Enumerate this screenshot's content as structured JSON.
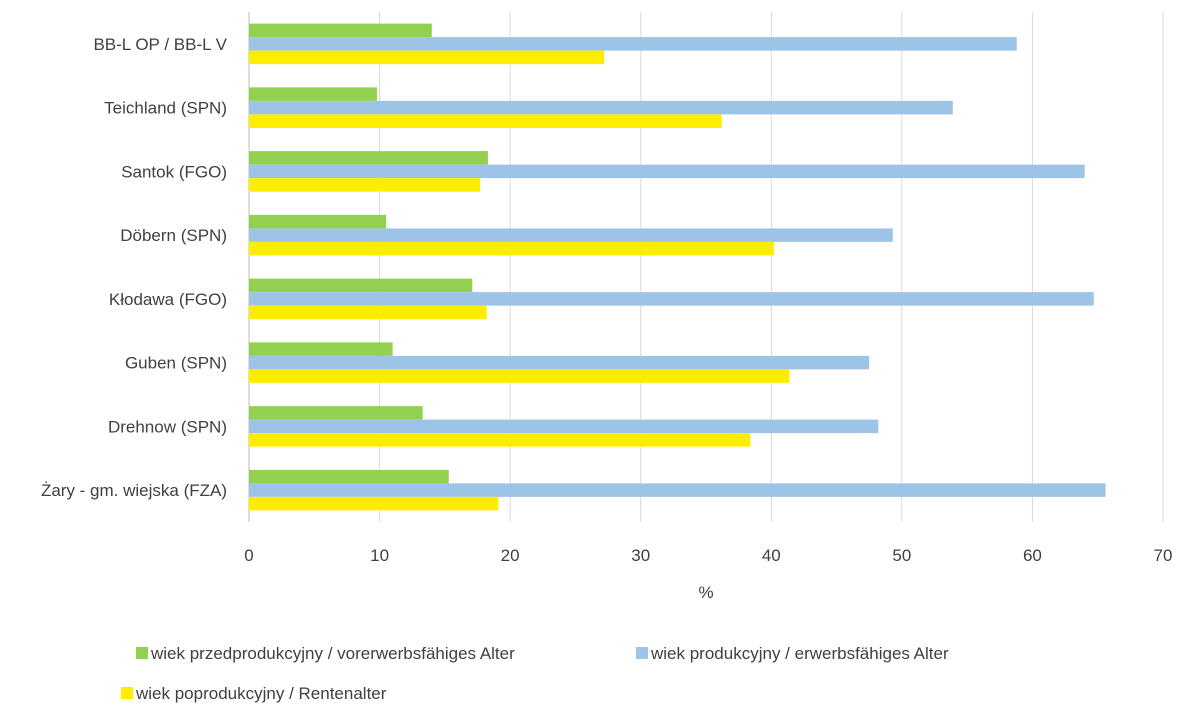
{
  "chart_data": {
    "type": "bar",
    "orientation": "horizontal",
    "categories": [
      "BB-L OP / BB-L V",
      "Teichland (SPN)",
      "Santok (FGO)",
      "Döbern (SPN)",
      "Kłodawa (FGO)",
      "Guben (SPN)",
      "Drehnow (SPN)",
      "Żary - gm. wiejska (FZA)"
    ],
    "series": [
      {
        "name": "wiek przedprodukcyjny / vorerwerbsfähiges Alter",
        "color": "#92d050",
        "values": [
          14.0,
          9.8,
          18.3,
          10.5,
          17.1,
          11.0,
          13.3,
          15.3
        ]
      },
      {
        "name": "wiek produkcyjny / erwerbsfähiges Alter",
        "color": "#9dc3e6",
        "values": [
          58.8,
          53.9,
          64.0,
          49.3,
          64.7,
          47.5,
          48.2,
          65.6
        ]
      },
      {
        "name": "wiek poprodukcyjny / Rentenalter",
        "color": "#ffed00",
        "values": [
          27.2,
          36.2,
          17.7,
          40.2,
          18.2,
          41.4,
          38.4,
          19.1
        ]
      }
    ],
    "xlabel": "%",
    "ylabel": "",
    "xlim": [
      0,
      70
    ],
    "xticks": [
      0,
      10,
      20,
      30,
      40,
      50,
      60,
      70
    ],
    "grid": "vertical",
    "legend_position": "bottom"
  }
}
